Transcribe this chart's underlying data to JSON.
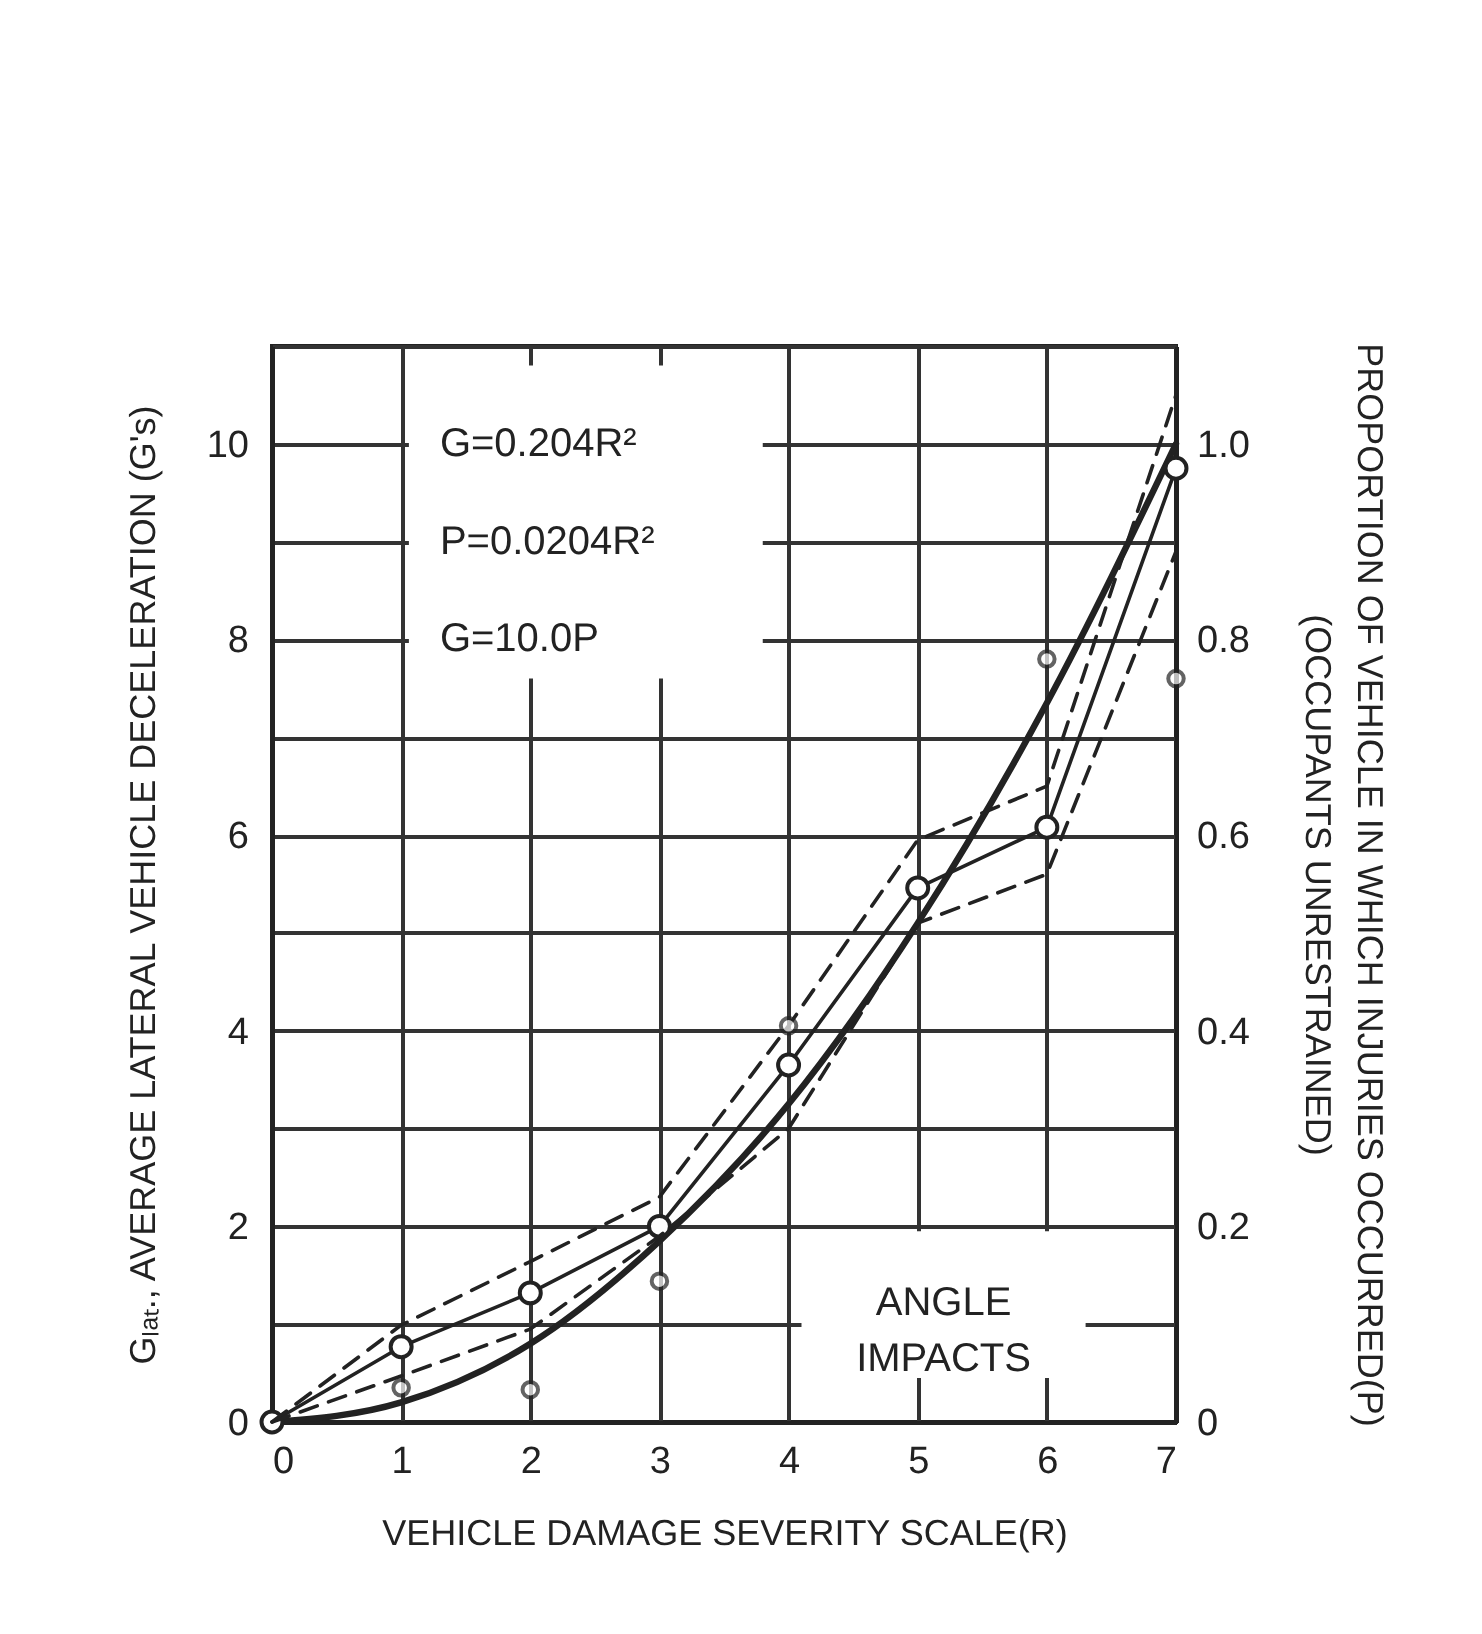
{
  "chart_data": {
    "type": "line",
    "xlabel": "VEHICLE DAMAGE SEVERITY SCALE(R)",
    "ylabel": "Gₗₐₜ., AVERAGE LATERAL VEHICLE DECELERATION (G's)",
    "y2label": "PROPORTION OF VEHICLE IN WHICH INJURIES OCCURRED(P)\n(OCCUPANTS   UNRESTRAINED)",
    "annotations": [
      "G=0.204R²",
      "P=0.0204R²",
      "G=10.0P",
      "ANGLE\nIMPACTS"
    ],
    "x": [
      0,
      1,
      2,
      3,
      4,
      5,
      6,
      7
    ],
    "series": [
      {
        "color": "#222222",
        "line_style": "solid",
        "marker": "none",
        "values": [
          0,
          0.2,
          0.8,
          1.85,
          3.25,
          5.1,
          7.35,
          10.0
        ]
      },
      {
        "color": "#222222",
        "line_style": "solid",
        "marker": "circle",
        "values": [
          0,
          0.77,
          1.32,
          2.0,
          3.65,
          5.46,
          6.08,
          9.75
        ]
      },
      {
        "color": "#222222",
        "line_style": "dashed",
        "marker": "none",
        "values": [
          0,
          0.99,
          1.64,
          2.3,
          4.05,
          5.95,
          6.5,
          10.5
        ]
      },
      {
        "color": "#222222",
        "line_style": "dashed",
        "marker": "none",
        "values": [
          0,
          0.47,
          0.95,
          1.9,
          3.0,
          5.1,
          5.6,
          8.9
        ]
      },
      {
        "type": "scatter",
        "color": "#222222",
        "marker": "circle",
        "x": [
          1,
          2,
          3,
          4,
          6,
          7
        ],
        "values": [
          0.35,
          0.33,
          1.44,
          4.05,
          7.8,
          7.6
        ]
      }
    ],
    "xlim": [
      0,
      7
    ],
    "xticks": [
      0,
      1,
      2,
      3,
      4,
      5,
      6,
      7
    ],
    "ylim": [
      0,
      11
    ],
    "yticks": [
      0,
      {
        "value": 1,
        "label": null
      },
      2,
      {
        "value": 3,
        "label": null
      },
      4,
      {
        "value": 5,
        "label": null
      },
      6,
      {
        "value": 7,
        "label": null
      },
      8,
      {
        "value": 9,
        "label": null
      },
      10,
      {
        "value": 11,
        "label": null
      }
    ],
    "y2lim": [
      0,
      1.1
    ],
    "y2ticks": [
      0,
      0.2,
      0.4,
      0.6,
      0.8,
      {
        "value": 1,
        "label": "1.0"
      }
    ],
    "grid": true
  }
}
